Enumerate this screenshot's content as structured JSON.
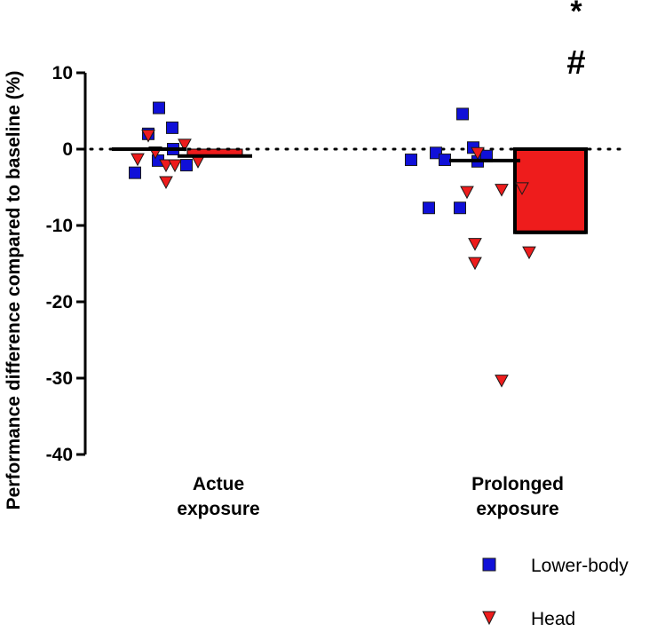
{
  "chart_data": {
    "type": "bar",
    "ylabel": "Performance difference compared to baseline (%)",
    "ylim": [
      -40,
      10
    ],
    "yticks": [
      10,
      0,
      -10,
      -20,
      -30,
      -40
    ],
    "reference_line": 0,
    "categories": [
      {
        "label_line1": "Actue",
        "label_line2": "exposure"
      },
      {
        "label_line1": "Prolonged",
        "label_line2": "exposure"
      }
    ],
    "series": [
      {
        "name": "Lower-body",
        "marker": "square",
        "color": "#1010d8",
        "means": [
          0.0,
          -1.5
        ],
        "bar_filled": [
          false,
          false
        ],
        "points": [
          [
            -3.1,
            2.0,
            -1.5,
            5.4,
            0.0,
            2.8,
            -2.1
          ],
          [
            -1.4,
            -7.7,
            -0.5,
            -1.4,
            -7.7,
            4.6,
            0.2,
            -1.6,
            -0.9
          ]
        ]
      },
      {
        "name": "Head",
        "marker": "triangle-down",
        "color": "#ee1c1c",
        "means": [
          -0.9,
          -10.9
        ],
        "bar_filled": [
          true,
          true
        ],
        "points": [
          [
            -1.3,
            1.8,
            -0.4,
            -2.1,
            -4.3,
            -2.1,
            0.6,
            -1.6
          ],
          [
            -5.6,
            -12.4,
            -14.9,
            -0.5,
            -5.3,
            -30.3,
            -5.1,
            -13.5
          ]
        ]
      }
    ],
    "annotations": [
      {
        "text": "*",
        "category": 1,
        "series": 1
      },
      {
        "text": "#",
        "category": 1,
        "series": 1
      }
    ],
    "legend": {
      "position": "bottom-right"
    }
  }
}
